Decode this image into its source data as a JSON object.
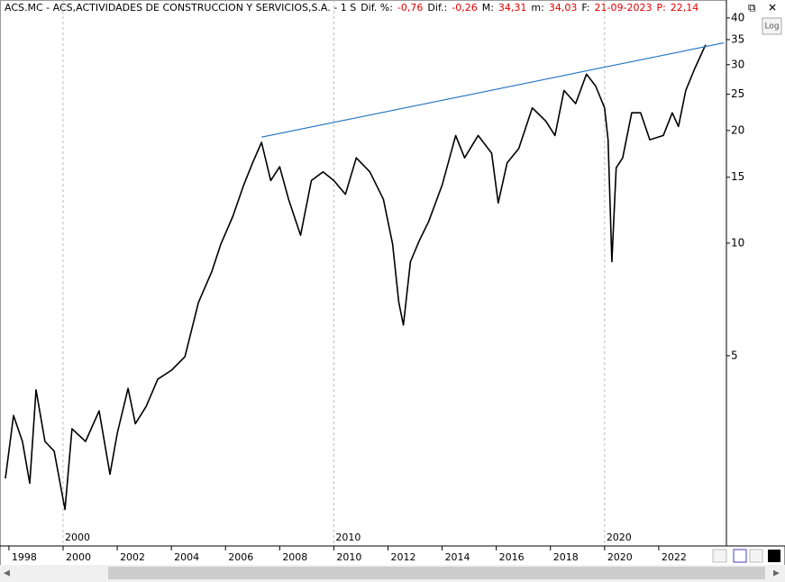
{
  "chart_data": {
    "type": "line",
    "header": {
      "title": "ACS.MC - ACS,ACTIVIDADES DE CONSTRUCCION Y SERVICIOS,S.A. -  1 S",
      "stats": [
        {
          "label": "Dif. %:",
          "value": "-0,76"
        },
        {
          "label": "Dif.:",
          "value": "-0,26"
        },
        {
          "label": "M:",
          "value": "34,31"
        },
        {
          "label": "m:",
          "value": "34,03"
        },
        {
          "label": "F:",
          "value": "21-09-2023"
        },
        {
          "label": "P:",
          "value": "22,14"
        }
      ]
    },
    "scale_button": "Log",
    "log_scale": true,
    "x": [
      1997.87,
      1998.17,
      1998.5,
      1998.77,
      1999.0,
      1999.33,
      1999.67,
      2000.07,
      2000.33,
      2000.83,
      2001.33,
      2001.73,
      2002.0,
      2002.4,
      2002.67,
      2003.07,
      2003.5,
      2004.0,
      2004.5,
      2005.0,
      2005.5,
      2005.83,
      2006.27,
      2006.67,
      2007.0,
      2007.33,
      2007.67,
      2008.0,
      2008.33,
      2008.77,
      2009.17,
      2009.6,
      2010.0,
      2010.43,
      2010.83,
      2011.33,
      2011.83,
      2012.17,
      2012.4,
      2012.57,
      2012.83,
      2013.17,
      2013.5,
      2014.0,
      2014.5,
      2014.83,
      2015.33,
      2015.83,
      2016.07,
      2016.4,
      2016.83,
      2017.33,
      2017.83,
      2018.17,
      2018.5,
      2018.93,
      2019.33,
      2019.67,
      2020.0,
      2020.13,
      2020.27,
      2020.43,
      2020.67,
      2021.0,
      2021.33,
      2021.67,
      2022.17,
      2022.5,
      2022.73,
      2023.0,
      2023.33,
      2023.73
    ],
    "series": [
      {
        "color": "#000000",
        "values": [
          2.35,
          3.46,
          2.95,
          2.28,
          4.05,
          2.95,
          2.78,
          1.94,
          3.19,
          2.95,
          3.56,
          2.41,
          3.1,
          4.09,
          3.29,
          3.66,
          4.33,
          4.57,
          4.97,
          6.94,
          8.42,
          9.95,
          11.8,
          14.3,
          16.4,
          18.6,
          14.7,
          16.0,
          13.1,
          10.5,
          14.7,
          15.5,
          14.7,
          13.5,
          16.9,
          15.5,
          13.1,
          9.95,
          6.94,
          6.04,
          8.92,
          10.2,
          11.4,
          14.3,
          19.4,
          16.9,
          19.4,
          17.4,
          12.8,
          16.4,
          17.9,
          23.0,
          21.2,
          19.4,
          25.6,
          23.6,
          28.3,
          26.3,
          23.0,
          18.9,
          8.92,
          15.9,
          16.9,
          22.3,
          22.3,
          18.9,
          19.4,
          22.3,
          20.5,
          25.6,
          29.3,
          33.9
        ]
      }
    ],
    "trend_line": {
      "color": "#1f6fbf",
      "x": [
        2007.33,
        2024.4
      ],
      "values": [
        19.2,
        34.3
      ]
    },
    "xlim": [
      1997.67,
      2024.5
    ],
    "ylim": [
      1.55,
      41.1
    ],
    "xticks": [
      1998,
      2000,
      2002,
      2004,
      2006,
      2008,
      2010,
      2012,
      2014,
      2016,
      2018,
      2020,
      2022
    ],
    "decade_ticks": [
      2000,
      2010,
      2020
    ],
    "yticks": [
      5,
      10,
      15,
      20,
      25,
      30,
      35,
      40
    ]
  }
}
